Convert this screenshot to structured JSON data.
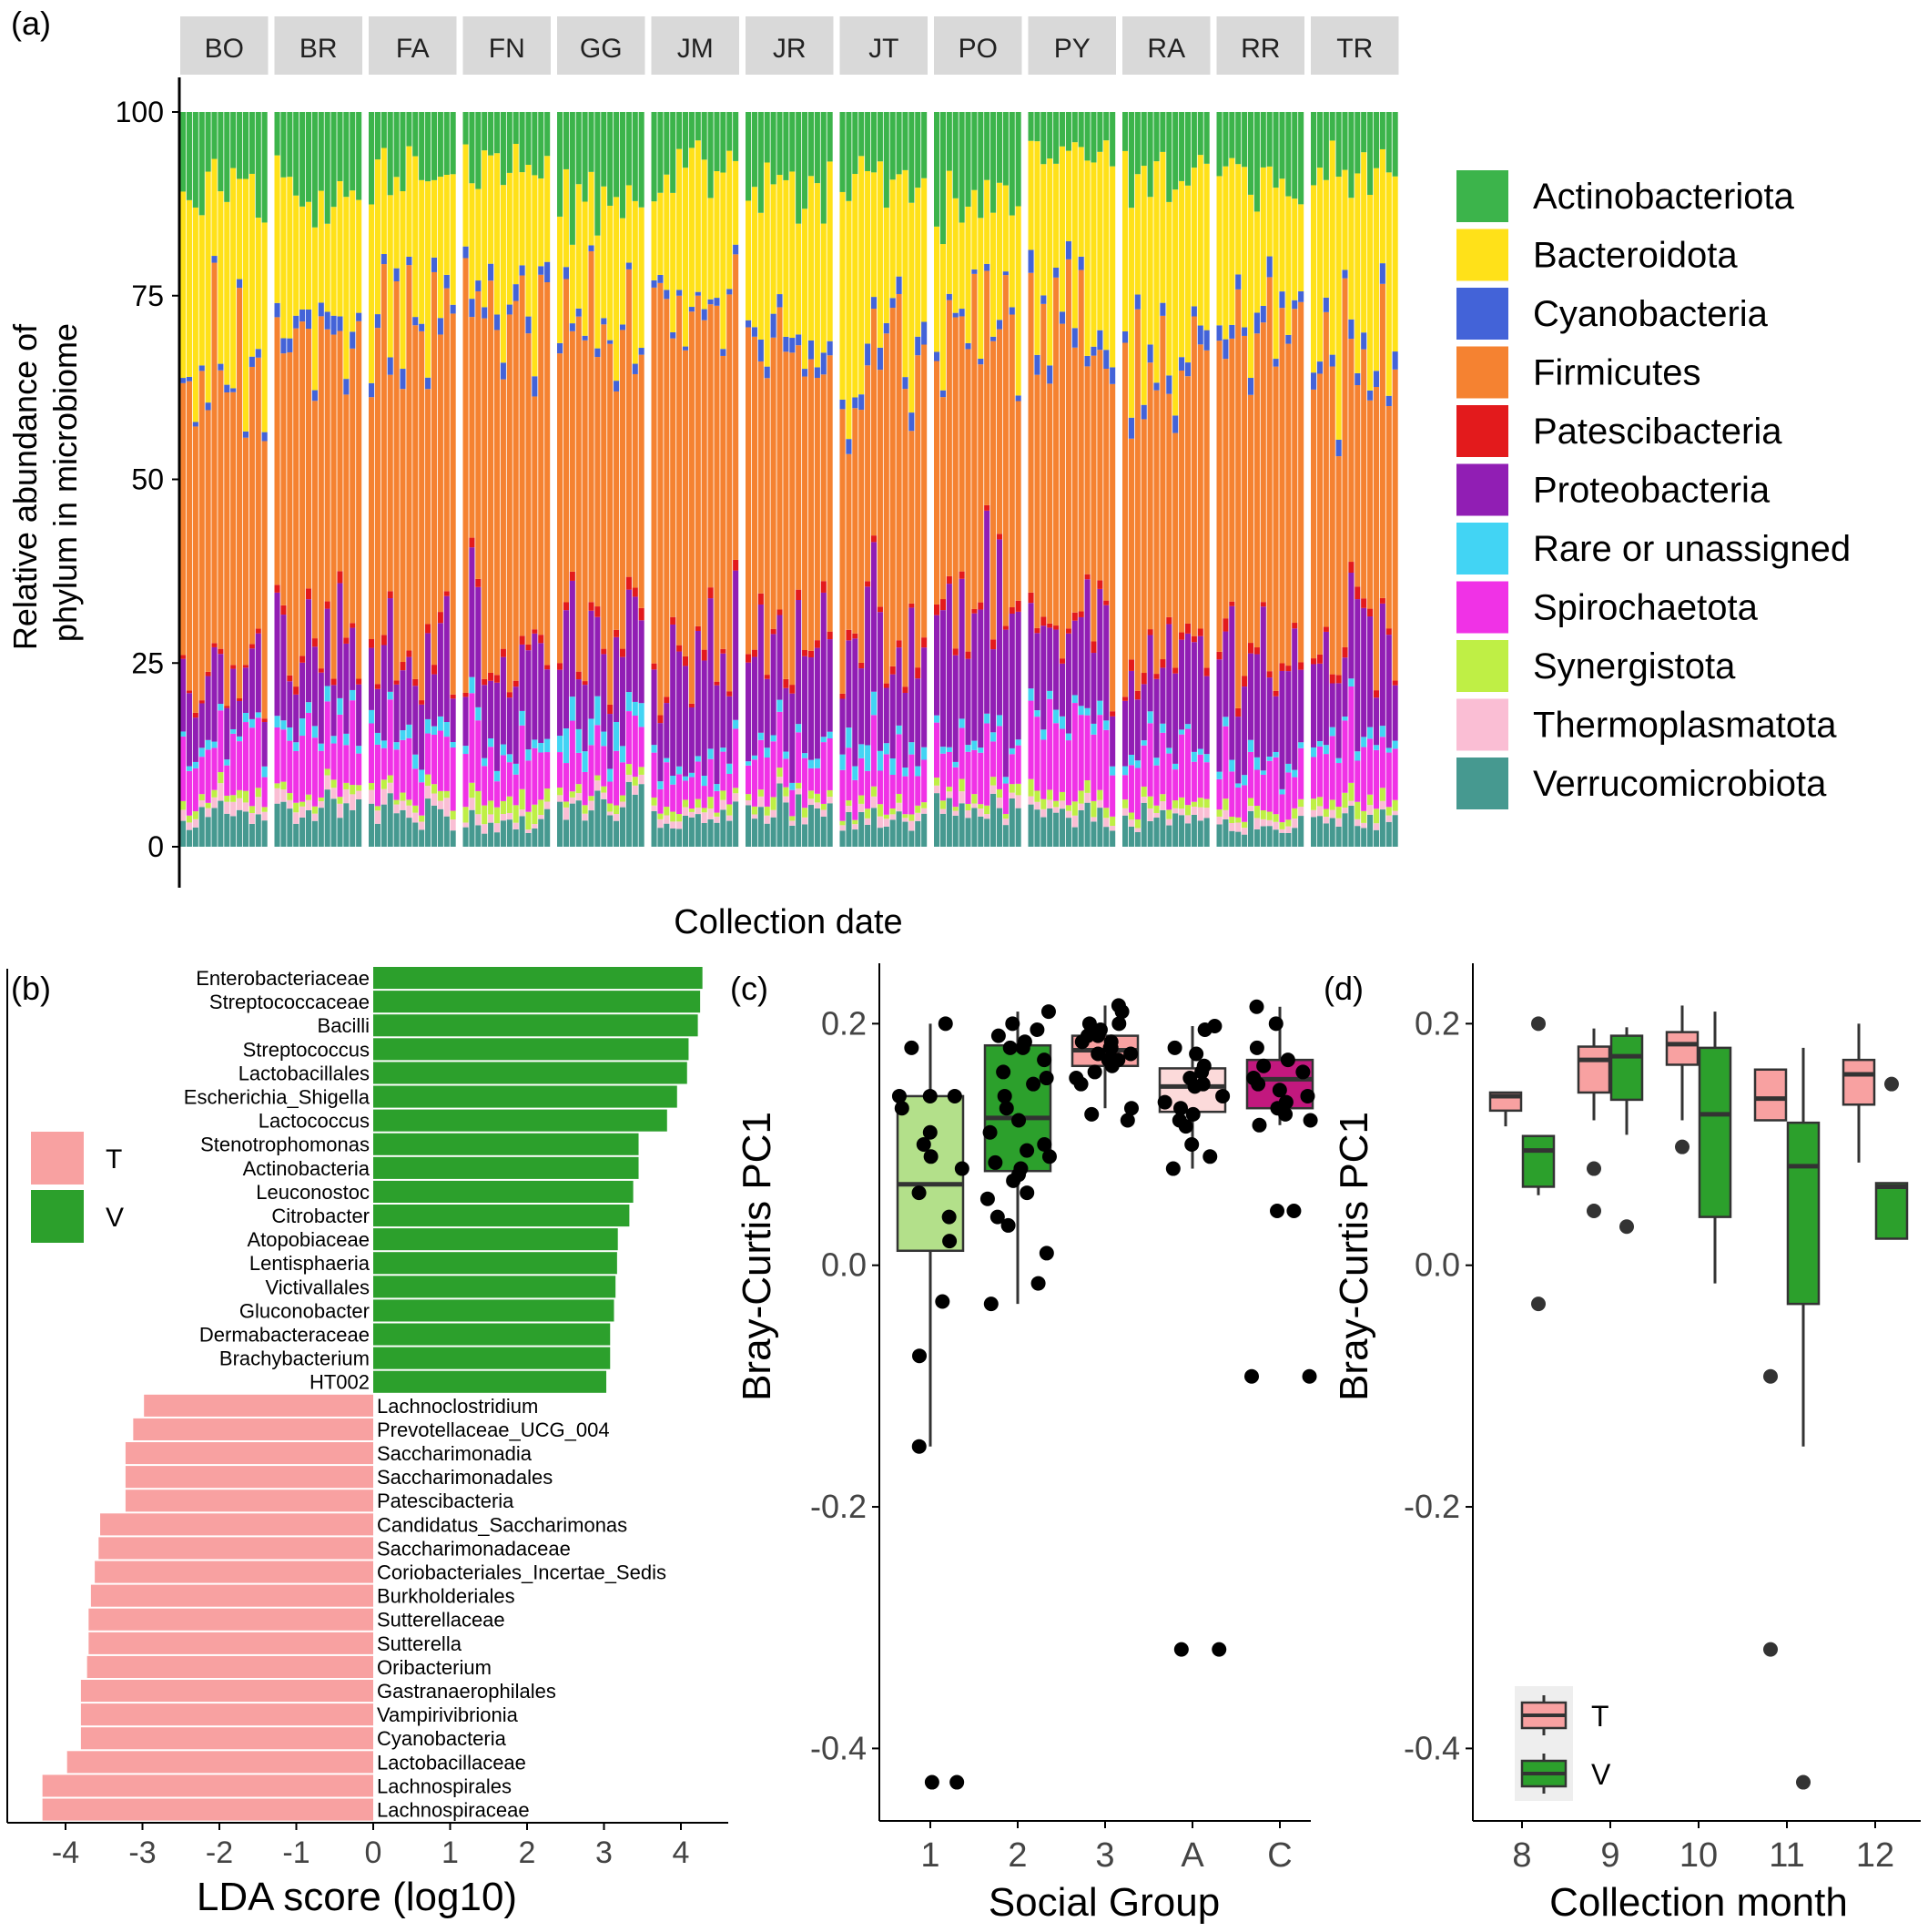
{
  "panel_labels": {
    "a": "(a)",
    "b": "(b)",
    "c": "(c)",
    "d": "(d)"
  },
  "colors": {
    "Actinobacteriota": "#3cb44b",
    "Bacteroidota": "#ffe119",
    "Cyanobacteria": "#4363d8",
    "Firmicutes": "#f58231",
    "Patescibacteria": "#e31a1c",
    "Proteobacteria": "#911eb4",
    "Rare or unassigned": "#42d4f4",
    "Spirochaetota": "#f032e6",
    "Synergistota": "#bfef45",
    "Thermoplasmatota": "#fabed4",
    "Verrucomicrobiota": "#469990",
    "T": "#f8a1a1",
    "V": "#2ca02c",
    "group_1": "#b3e08a",
    "group_2": "#2ca02c",
    "group_3": "#f8a1a1",
    "group_A": "#fcdada",
    "group_C": "#c2187e",
    "strip": "#d9d9d9"
  },
  "chart_data": [
    {
      "id": "a",
      "type": "bar",
      "stacked": true,
      "xlabel": "Collection date",
      "ylabel": [
        "Relative abundance of",
        "phylum in microbiome"
      ],
      "ylim": [
        0,
        100
      ],
      "yticks": [
        0,
        25,
        50,
        75,
        100
      ],
      "facets": [
        "BO",
        "BR",
        "FA",
        "FN",
        "GG",
        "JM",
        "JR",
        "JT",
        "PO",
        "PY",
        "RA",
        "RR",
        "TR"
      ],
      "bars_per_facet": 14,
      "series_order": [
        "Actinobacteriota",
        "Bacteroidota",
        "Cyanobacteria",
        "Firmicutes",
        "Patescibacteria",
        "Proteobacteria",
        "Rare or unassigned",
        "Spirochaetota",
        "Synergistota",
        "Thermoplasmatota",
        "Verrucomicrobiota"
      ],
      "facet_profiles": [
        {
          "facet": "BO",
          "Actinobacteriota": 10,
          "Bacteroidota": 22,
          "Cyanobacteria": 1,
          "Firmicutes": 44,
          "Patescibacteria": 0.5,
          "Proteobacteria": 9,
          "Rare or unassigned": 1,
          "Spirochaetota": 6,
          "Synergistota": 1,
          "Thermoplasmatota": 1.5,
          "Verrucomicrobiota": 4
        },
        {
          "facet": "BR",
          "Actinobacteriota": 10,
          "Bacteroidota": 18,
          "Cyanobacteria": 2,
          "Firmicutes": 40,
          "Patescibacteria": 1,
          "Proteobacteria": 12,
          "Rare or unassigned": 1.5,
          "Spirochaetota": 8,
          "Synergistota": 1,
          "Thermoplasmatota": 1.5,
          "Verrucomicrobiota": 5
        },
        {
          "facet": "FA",
          "Actinobacteriota": 8,
          "Bacteroidota": 18,
          "Cyanobacteria": 1.5,
          "Firmicutes": 45,
          "Patescibacteria": 1,
          "Proteobacteria": 10,
          "Rare or unassigned": 1.5,
          "Spirochaetota": 8,
          "Synergistota": 1,
          "Thermoplasmatota": 1.5,
          "Verrucomicrobiota": 4.5
        },
        {
          "facet": "FN",
          "Actinobacteriota": 8,
          "Bacteroidota": 20,
          "Cyanobacteria": 2,
          "Firmicutes": 42,
          "Patescibacteria": 1,
          "Proteobacteria": 12,
          "Rare or unassigned": 1.5,
          "Spirochaetota": 7,
          "Synergistota": 2,
          "Thermoplasmatota": 1,
          "Verrucomicrobiota": 3.5
        },
        {
          "facet": "GG",
          "Actinobacteriota": 12,
          "Bacteroidota": 15,
          "Cyanobacteria": 1,
          "Firmicutes": 43,
          "Patescibacteria": 1,
          "Proteobacteria": 12,
          "Rare or unassigned": 3,
          "Spirochaetota": 6,
          "Synergistota": 1,
          "Thermoplasmatota": 1,
          "Verrucomicrobiota": 5
        },
        {
          "facet": "JM",
          "Actinobacteriota": 8,
          "Bacteroidota": 18,
          "Cyanobacteria": 1,
          "Firmicutes": 46,
          "Patescibacteria": 1,
          "Proteobacteria": 14,
          "Rare or unassigned": 1,
          "Spirochaetota": 5,
          "Synergistota": 1,
          "Thermoplasmatota": 1,
          "Verrucomicrobiota": 4
        },
        {
          "facet": "JR",
          "Actinobacteriota": 10,
          "Bacteroidota": 20,
          "Cyanobacteria": 2,
          "Firmicutes": 40,
          "Patescibacteria": 1,
          "Proteobacteria": 13,
          "Rare or unassigned": 1,
          "Spirochaetota": 6,
          "Synergistota": 1,
          "Thermoplasmatota": 1,
          "Verrucomicrobiota": 5
        },
        {
          "facet": "JT",
          "Actinobacteriota": 10,
          "Bacteroidota": 22,
          "Cyanobacteria": 2,
          "Firmicutes": 38,
          "Patescibacteria": 1,
          "Proteobacteria": 13,
          "Rare or unassigned": 2,
          "Spirochaetota": 6,
          "Synergistota": 1,
          "Thermoplasmatota": 1,
          "Verrucomicrobiota": 4
        },
        {
          "facet": "PO",
          "Actinobacteriota": 12,
          "Bacteroidota": 15,
          "Cyanobacteria": 1,
          "Firmicutes": 38,
          "Patescibacteria": 1,
          "Proteobacteria": 18,
          "Rare or unassigned": 1,
          "Spirochaetota": 7,
          "Synergistota": 1,
          "Thermoplasmatota": 1,
          "Verrucomicrobiota": 5
        },
        {
          "facet": "PY",
          "Actinobacteriota": 6,
          "Bacteroidota": 22,
          "Cyanobacteria": 2,
          "Firmicutes": 40,
          "Patescibacteria": 1,
          "Proteobacteria": 12,
          "Rare or unassigned": 1.5,
          "Spirochaetota": 9,
          "Synergistota": 1.5,
          "Thermoplasmatota": 1,
          "Verrucomicrobiota": 4
        },
        {
          "facet": "RA",
          "Actinobacteriota": 8,
          "Bacteroidota": 25,
          "Cyanobacteria": 2,
          "Firmicutes": 40,
          "Patescibacteria": 1,
          "Proteobacteria": 10,
          "Rare or unassigned": 1,
          "Spirochaetota": 7,
          "Synergistota": 1,
          "Thermoplasmatota": 1,
          "Verrucomicrobiota": 4
        },
        {
          "facet": "RR",
          "Actinobacteriota": 10,
          "Bacteroidota": 20,
          "Cyanobacteria": 2,
          "Firmicutes": 40,
          "Patescibacteria": 1,
          "Proteobacteria": 15,
          "Rare or unassigned": 1,
          "Spirochaetota": 6,
          "Synergistota": 1,
          "Thermoplasmatota": 1,
          "Verrucomicrobiota": 3
        },
        {
          "facet": "TR",
          "Actinobacteriota": 8,
          "Bacteroidota": 24,
          "Cyanobacteria": 2,
          "Firmicutes": 38,
          "Patescibacteria": 1,
          "Proteobacteria": 12,
          "Rare or unassigned": 1,
          "Spirochaetota": 8,
          "Synergistota": 1.5,
          "Thermoplasmatota": 1,
          "Verrucomicrobiota": 3.5
        }
      ],
      "legend": {
        "placement": "right",
        "entries": [
          "Actinobacteriota",
          "Bacteroidota",
          "Cyanobacteria",
          "Firmicutes",
          "Patescibacteria",
          "Proteobacteria",
          "Rare or unassigned",
          "Spirochaetota",
          "Synergistota",
          "Thermoplasmatota",
          "Verrucomicrobiota"
        ]
      }
    },
    {
      "id": "b",
      "type": "bar",
      "orientation": "horizontal",
      "xlabel": "LDA score (log10)",
      "xlim": [
        -4.5,
        4.5
      ],
      "xticks": [
        -4,
        -3,
        -2,
        -1,
        0,
        1,
        2,
        3,
        4
      ],
      "legend": {
        "placement": "left",
        "entries": [
          "T",
          "V"
        ]
      },
      "categories": [
        "Enterobacteriaceae",
        "Streptococcaceae",
        "Bacilli",
        "Streptococcus",
        "Lactobacillales",
        "Escherichia_Shigella",
        "Lactococcus",
        "Stenotrophomonas",
        "Actinobacteria",
        "Leuconostoc",
        "Citrobacter",
        "Atopobiaceae",
        "Lentisphaeria",
        "Victivallales",
        "Gluconobacter",
        "Dermabacteraceae",
        "Brachybacterium",
        "HT002",
        "Lachnoclostridium",
        "Prevotellaceae_UCG_004",
        "Saccharimonadia",
        "Saccharimonadales",
        "Patescibacteria",
        "Candidatus_Saccharimonas",
        "Saccharimonadaceae",
        "Coriobacteriales_Incertae_Sedis",
        "Burkholderiales",
        "Sutterellaceae",
        "Sutterella",
        "Oribacterium",
        "Gastranaerophilales",
        "Vampirivibrionia",
        "Cyanobacteria",
        "Lactobacillaceae",
        "Lachnospirales",
        "Lachnospiraceae"
      ],
      "values": [
        4.28,
        4.25,
        4.22,
        4.1,
        4.08,
        3.95,
        3.82,
        3.45,
        3.45,
        3.38,
        3.33,
        3.18,
        3.17,
        3.15,
        3.13,
        3.08,
        3.08,
        3.03,
        -2.98,
        -3.12,
        -3.22,
        -3.22,
        -3.22,
        -3.55,
        -3.57,
        -3.62,
        -3.67,
        -3.7,
        -3.7,
        -3.72,
        -3.8,
        -3.8,
        -3.8,
        -3.98,
        -4.3,
        -4.3
      ],
      "groups": [
        "V",
        "V",
        "V",
        "V",
        "V",
        "V",
        "V",
        "V",
        "V",
        "V",
        "V",
        "V",
        "V",
        "V",
        "V",
        "V",
        "V",
        "V",
        "T",
        "T",
        "T",
        "T",
        "T",
        "T",
        "T",
        "T",
        "T",
        "T",
        "T",
        "T",
        "T",
        "T",
        "T",
        "T",
        "T",
        "T"
      ]
    },
    {
      "id": "c",
      "type": "box",
      "xlabel": "Social Group",
      "ylabel": "Bray-Curtis PC1",
      "ylim": [
        -0.46,
        0.25
      ],
      "yticks": [
        -0.4,
        -0.2,
        0.0,
        0.2
      ],
      "ytick_labels": [
        "-0.4",
        "-0.2",
        "0.0",
        "0.2"
      ],
      "categories": [
        "1",
        "2",
        "3",
        "A",
        "C"
      ],
      "boxes": [
        {
          "group": "1",
          "q1": 0.012,
          "median": 0.067,
          "q3": 0.14,
          "lo": -0.15,
          "hi": 0.2,
          "outliers": [
            -0.428
          ],
          "points": [
            0.2,
            0.18,
            0.14,
            0.14,
            0.14,
            0.13,
            0.11,
            0.1,
            0.09,
            0.08,
            0.06,
            0.04,
            0.02,
            -0.03,
            -0.075,
            -0.15,
            -0.428,
            -0.428
          ]
        },
        {
          "group": "2",
          "q1": 0.078,
          "median": 0.122,
          "q3": 0.182,
          "lo": -0.032,
          "hi": 0.21,
          "outliers": [],
          "points": [
            0.21,
            0.2,
            0.195,
            0.19,
            0.185,
            0.18,
            0.18,
            0.17,
            0.16,
            0.155,
            0.15,
            0.14,
            0.13,
            0.12,
            0.11,
            0.1,
            0.095,
            0.09,
            0.085,
            0.08,
            0.075,
            0.07,
            0.06,
            0.055,
            0.04,
            0.033,
            0.01,
            -0.015,
            -0.032
          ]
        },
        {
          "group": "3",
          "q1": 0.165,
          "median": 0.178,
          "q3": 0.19,
          "lo": 0.13,
          "hi": 0.215,
          "outliers": [
            0.12
          ],
          "points": [
            0.215,
            0.21,
            0.2,
            0.2,
            0.195,
            0.195,
            0.19,
            0.19,
            0.185,
            0.185,
            0.18,
            0.18,
            0.175,
            0.175,
            0.17,
            0.17,
            0.165,
            0.16,
            0.155,
            0.15,
            0.13,
            0.125,
            0.12
          ]
        },
        {
          "group": "A",
          "q1": 0.127,
          "median": 0.148,
          "q3": 0.163,
          "lo": 0.08,
          "hi": 0.198,
          "outliers": [
            -0.318
          ],
          "points": [
            0.198,
            0.195,
            0.18,
            0.175,
            0.165,
            0.16,
            0.155,
            0.15,
            0.148,
            0.14,
            0.135,
            0.13,
            0.125,
            0.12,
            0.115,
            0.1,
            0.09,
            0.08,
            -0.318,
            -0.318
          ]
        },
        {
          "group": "C",
          "q1": 0.13,
          "median": 0.154,
          "q3": 0.17,
          "lo": 0.116,
          "hi": 0.214,
          "outliers": [
            0.045,
            -0.092
          ],
          "points": [
            0.214,
            0.2,
            0.18,
            0.17,
            0.165,
            0.16,
            0.155,
            0.15,
            0.145,
            0.14,
            0.135,
            0.13,
            0.125,
            0.12,
            0.116,
            0.045,
            0.045,
            -0.092,
            -0.092
          ]
        }
      ]
    },
    {
      "id": "d",
      "type": "box",
      "xlabel": "Collection month",
      "ylabel": "Bray-Curtis PC1",
      "ylim": [
        -0.46,
        0.25
      ],
      "yticks": [
        -0.4,
        -0.2,
        0.0,
        0.2
      ],
      "ytick_labels": [
        "-0.4",
        "-0.2",
        "0.0",
        "0.2"
      ],
      "categories": [
        "8",
        "9",
        "10",
        "11",
        "12"
      ],
      "legend": {
        "placement": "bottom-left",
        "entries": [
          "T",
          "V"
        ]
      },
      "boxes": [
        {
          "month": "8",
          "group": "T",
          "q1": 0.128,
          "median": 0.14,
          "q3": 0.143,
          "lo": 0.115,
          "hi": 0.143,
          "outliers": []
        },
        {
          "month": "8",
          "group": "V",
          "q1": 0.065,
          "median": 0.095,
          "q3": 0.107,
          "lo": 0.058,
          "hi": 0.107,
          "outliers": [
            0.2,
            -0.032
          ]
        },
        {
          "month": "9",
          "group": "T",
          "q1": 0.143,
          "median": 0.17,
          "q3": 0.181,
          "lo": 0.12,
          "hi": 0.196,
          "outliers": [
            0.08,
            0.045
          ]
        },
        {
          "month": "9",
          "group": "V",
          "q1": 0.137,
          "median": 0.173,
          "q3": 0.19,
          "lo": 0.108,
          "hi": 0.197,
          "outliers": [
            0.032
          ]
        },
        {
          "month": "10",
          "group": "T",
          "q1": 0.166,
          "median": 0.183,
          "q3": 0.193,
          "lo": 0.12,
          "hi": 0.215,
          "outliers": [
            0.098
          ]
        },
        {
          "month": "10",
          "group": "V",
          "q1": 0.04,
          "median": 0.125,
          "q3": 0.18,
          "lo": -0.015,
          "hi": 0.21,
          "outliers": []
        },
        {
          "month": "11",
          "group": "T",
          "q1": 0.12,
          "median": 0.138,
          "q3": 0.162,
          "lo": 0.12,
          "hi": 0.162,
          "outliers": [
            -0.092,
            -0.318
          ]
        },
        {
          "month": "11",
          "group": "V",
          "q1": -0.032,
          "median": 0.082,
          "q3": 0.118,
          "lo": -0.15,
          "hi": 0.18,
          "outliers": [
            -0.428
          ]
        },
        {
          "month": "12",
          "group": "T",
          "q1": 0.133,
          "median": 0.158,
          "q3": 0.17,
          "lo": 0.085,
          "hi": 0.2,
          "outliers": []
        },
        {
          "month": "12",
          "group": "V",
          "q1": 0.022,
          "median": 0.065,
          "q3": 0.068,
          "lo": 0.022,
          "hi": 0.068,
          "outliers": [
            0.15
          ]
        }
      ]
    }
  ]
}
